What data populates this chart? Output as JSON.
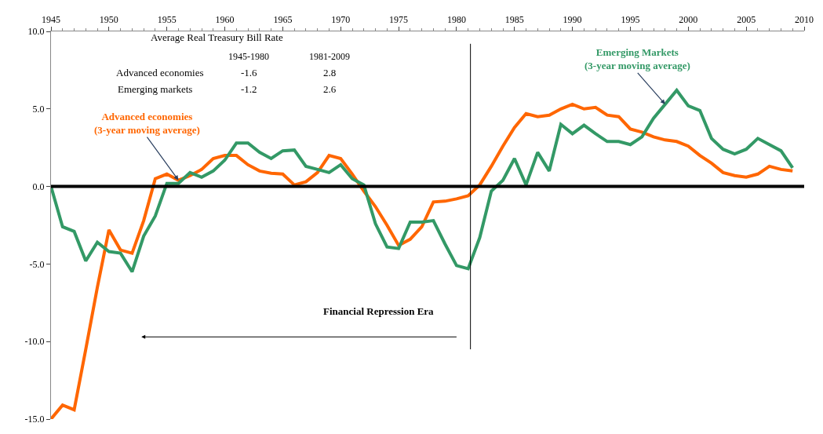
{
  "chart_data": {
    "type": "line",
    "x": [
      1945,
      1946,
      1947,
      1948,
      1949,
      1950,
      1951,
      1952,
      1953,
      1954,
      1955,
      1956,
      1957,
      1958,
      1959,
      1960,
      1961,
      1962,
      1963,
      1964,
      1965,
      1966,
      1967,
      1968,
      1969,
      1970,
      1971,
      1972,
      1973,
      1974,
      1975,
      1976,
      1977,
      1978,
      1979,
      1980,
      1981,
      1982,
      1983,
      1984,
      1985,
      1986,
      1987,
      1988,
      1989,
      1990,
      1991,
      1992,
      1993,
      1994,
      1995,
      1996,
      1997,
      1998,
      1999,
      2000,
      2001,
      2002,
      2003,
      2004,
      2005,
      2006,
      2007,
      2008,
      2009
    ],
    "series": [
      {
        "name": "Advanced economies\n(3-year moving average)",
        "color": "#ff6600",
        "values": [
          -15.0,
          -14.1,
          -14.4,
          -10.5,
          -6.5,
          -2.8,
          -4.1,
          -4.3,
          -2.2,
          0.5,
          0.8,
          0.4,
          0.7,
          1.1,
          1.8,
          2.0,
          2.0,
          1.4,
          1.0,
          0.85,
          0.8,
          0.1,
          0.3,
          0.9,
          2.0,
          1.8,
          0.8,
          -0.3,
          -1.3,
          -2.5,
          -3.8,
          -3.4,
          -2.6,
          -1.0,
          -0.95,
          -0.8,
          -0.6,
          0.1,
          1.3,
          2.6,
          3.8,
          4.7,
          4.5,
          4.6,
          5.0,
          5.3,
          5.0,
          5.1,
          4.6,
          4.5,
          3.7,
          3.5,
          3.2,
          3.0,
          2.9,
          2.6,
          2.0,
          1.5,
          0.9,
          0.7,
          0.6,
          0.8,
          1.3,
          1.1,
          1.0
        ]
      },
      {
        "name": "Emerging Markets\n(3-year moving average)",
        "color": "#339966",
        "values": [
          0.0,
          -2.6,
          -2.9,
          -4.8,
          -3.6,
          -4.2,
          -4.3,
          -5.5,
          -3.2,
          -1.9,
          0.2,
          0.2,
          0.9,
          0.6,
          1.0,
          1.7,
          2.8,
          2.8,
          2.2,
          1.8,
          2.3,
          2.35,
          1.3,
          1.1,
          0.9,
          1.4,
          0.5,
          0.1,
          -2.4,
          -3.9,
          -4.0,
          -2.3,
          -2.3,
          -2.2,
          -3.7,
          -5.1,
          -5.3,
          -3.3,
          -0.3,
          0.4,
          1.8,
          0.1,
          2.2,
          1.0,
          4.0,
          3.4,
          3.95,
          3.4,
          2.9,
          2.9,
          2.7,
          3.2,
          4.4,
          5.3,
          6.2,
          5.2,
          4.9,
          3.1,
          2.4,
          2.1,
          2.4,
          3.1,
          2.7,
          2.3,
          1.2
        ]
      }
    ],
    "xlim": [
      1945,
      2010
    ],
    "xticks": [
      1945,
      1950,
      1955,
      1960,
      1965,
      1970,
      1975,
      1980,
      1985,
      1990,
      1995,
      2000,
      2005,
      2010
    ],
    "ylim": [
      -15,
      10
    ],
    "yticks": [
      {
        "value": -15,
        "label": "-15.0"
      },
      {
        "value": -10,
        "label": "-10.0"
      },
      {
        "value": -5,
        "label": "-5.0"
      },
      {
        "value": 0,
        "label": "0.0"
      },
      {
        "value": 5,
        "label": "5.0"
      },
      {
        "value": 10,
        "label": "10.0"
      }
    ],
    "ref_lines": [
      {
        "axis": "y",
        "value": 0,
        "color": "#000000"
      },
      {
        "axis": "x",
        "value": 1981.2,
        "color": "#000000"
      }
    ],
    "annotations": [
      "Average Real Treasury Bill Rate",
      "1945-1980",
      "1981-2009",
      "Advanced economies",
      "Emerging markets",
      "-1.6",
      "2.8",
      "-1.2",
      "2.6",
      "Financial Repression Era"
    ],
    "legend": false,
    "marker": "none",
    "line_style": "solid"
  }
}
